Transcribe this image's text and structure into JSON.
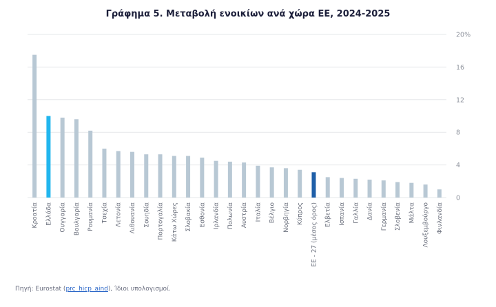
{
  "chart_data": {
    "type": "bar",
    "title": "Γράφημα 5. Μεταβολή ενοικίων ανά χώρα ΕΕ, 2024-2025",
    "xlabel": "",
    "ylabel": "",
    "ylim": [
      0,
      20
    ],
    "yticks": [
      "0",
      "4",
      "8",
      "12",
      "16",
      "20%"
    ],
    "grid": true,
    "categories": [
      "Κροατία",
      "Ελλάδα",
      "Ουγγαρία",
      "Βουλγαρία",
      "Ρουμανία",
      "Τσεχία",
      "Λετονία",
      "Λιθουανία",
      "Σουηδία",
      "Πορτογαλία",
      "Κάτω Χώρες",
      "Σλοβακία",
      "Εσθονία",
      "Ιρλανδία",
      "Πολωνία",
      "Αυστρία",
      "Ιταλία",
      "Βέλγιο",
      "Νορβηγία",
      "Κύπρος",
      "ΕΕ - 27 (μέσος όρος)",
      "Ελβετία",
      "Ισπανία",
      "Γαλλία",
      "Δανία",
      "Γερμανία",
      "Σλοβενία",
      "Μάλτα",
      "Λουξεμβούργο",
      "Φινλανδία"
    ],
    "values": [
      17.5,
      10.0,
      9.8,
      9.6,
      8.2,
      6.0,
      5.7,
      5.6,
      5.3,
      5.3,
      5.1,
      5.1,
      4.9,
      4.5,
      4.4,
      4.3,
      3.9,
      3.7,
      3.6,
      3.4,
      3.1,
      2.5,
      2.4,
      2.3,
      2.2,
      2.1,
      1.9,
      1.8,
      1.6,
      1.0
    ],
    "highlighted": [
      "Ελλάδα",
      "ΕΕ - 27 (μέσος όρος)"
    ]
  },
  "colors": {
    "bar": "#b8c8d4",
    "greece": "#21b6ee",
    "eu": "#1f5fa8",
    "grid": "#e5e7ea",
    "title": "#1c1f3a"
  },
  "source": {
    "prefix": "Πηγή: Eurostat (",
    "link": "prc_hicp_aind",
    "suffix": "), Ίδιοι υπολογισμοί."
  }
}
